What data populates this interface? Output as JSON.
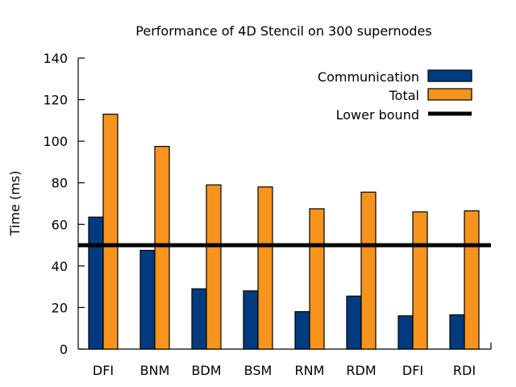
{
  "chart_data": {
    "type": "bar",
    "title": "Performance of 4D Stencil on 300 supernodes",
    "xlabel": "",
    "ylabel": "Time (ms)",
    "ylim": [
      0,
      140
    ],
    "yticks": [
      0,
      20,
      40,
      60,
      80,
      100,
      120,
      140
    ],
    "grid": false,
    "legend_position": "top-right",
    "categories": [
      "DFI",
      "BNM",
      "BDM",
      "BSM",
      "RNM",
      "RDM",
      "DFI",
      "RDI"
    ],
    "series": [
      {
        "name": "Communication",
        "color": "#003b7f",
        "values": [
          63.5,
          47.5,
          29,
          28,
          18,
          25.5,
          16,
          16.5
        ]
      },
      {
        "name": "Total",
        "color": "#f7941d",
        "values": [
          113,
          97.5,
          79,
          78,
          67.5,
          75.5,
          66,
          66.5
        ]
      }
    ],
    "reference_line": {
      "name": "Lower bound",
      "value": 50,
      "color": "#000000"
    }
  }
}
